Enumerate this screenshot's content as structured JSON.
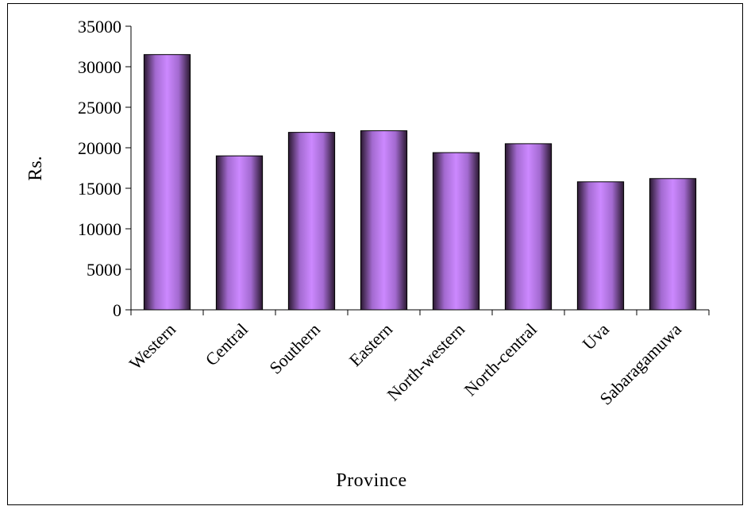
{
  "chart_data": {
    "type": "bar",
    "title": "",
    "xlabel": "Province",
    "ylabel": "Rs.",
    "categories": [
      "Western",
      "Central",
      "Southern",
      "Eastern",
      "North-western",
      "North-central",
      "Uva",
      "Sabaragamuwa"
    ],
    "values": [
      31500,
      19000,
      21900,
      22100,
      19400,
      20500,
      15800,
      16200
    ],
    "ylim": [
      0,
      35000
    ],
    "yticks": [
      0,
      5000,
      10000,
      15000,
      20000,
      25000,
      30000,
      35000
    ],
    "ytick_labels": [
      "0",
      "5000",
      "10000",
      "15000",
      "20000",
      "25000",
      "30000",
      "35000"
    ],
    "grid": false,
    "legend": "none",
    "bar_color_edge": "#2a1830",
    "bar_color_center": "#cc88ff"
  }
}
